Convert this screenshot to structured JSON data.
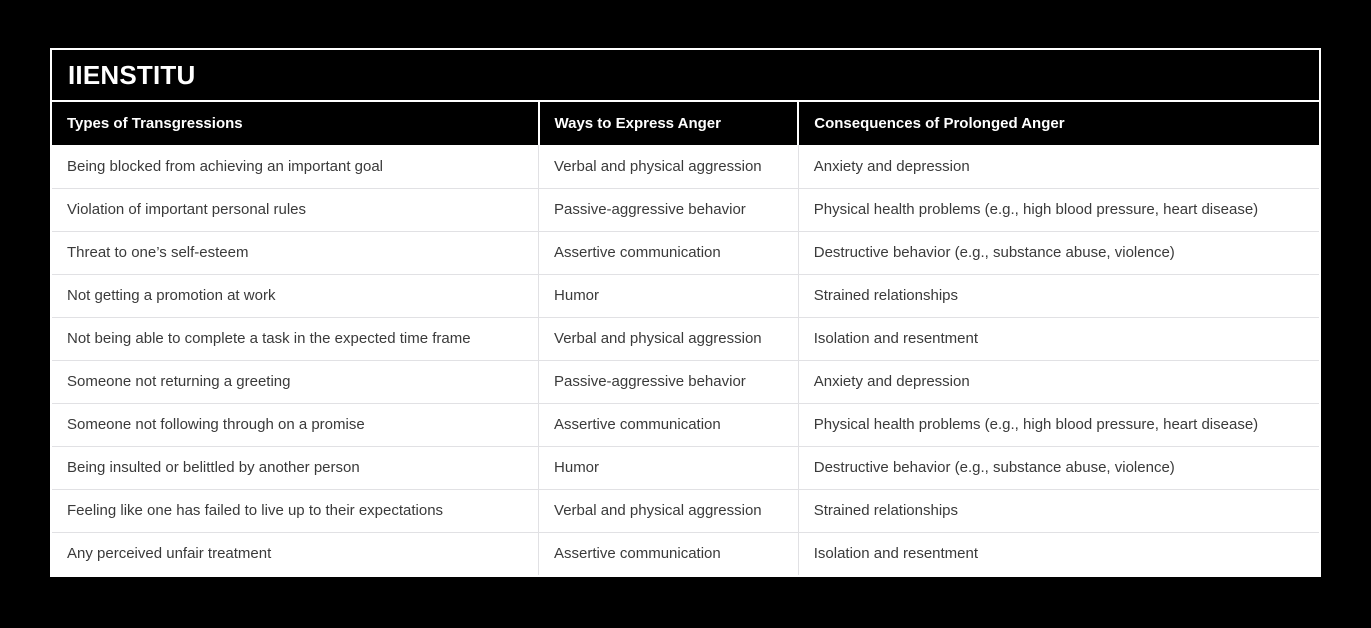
{
  "brand": {
    "title": "IIENSTITU"
  },
  "colors": {
    "page_background": "#000000",
    "card_border": "#ffffff",
    "header_background": "#000000",
    "header_text": "#ffffff",
    "body_background": "#ffffff",
    "body_text": "#3a3a3a",
    "divider": "#e1e1e4"
  },
  "table": {
    "headers": [
      "Types of Transgressions",
      "Ways to Express Anger",
      "Consequences of Prolonged Anger"
    ],
    "rows": [
      [
        "Being blocked from achieving an important goal",
        "Verbal and physical aggression",
        "Anxiety and depression"
      ],
      [
        "Violation of important personal rules",
        "Passive-aggressive behavior",
        "Physical health problems (e.g., high blood pressure, heart disease)"
      ],
      [
        "Threat to one’s self-esteem",
        "Assertive communication",
        "Destructive behavior (e.g., substance abuse, violence)"
      ],
      [
        "Not getting a promotion at work",
        "Humor",
        "Strained relationships"
      ],
      [
        "Not being able to complete a task in the expected time frame",
        "Verbal and physical aggression",
        "Isolation and resentment"
      ],
      [
        "Someone not returning a greeting",
        "Passive-aggressive behavior",
        "Anxiety and depression"
      ],
      [
        "Someone not following through on a promise",
        "Assertive communication",
        "Physical health problems (e.g., high blood pressure, heart disease)"
      ],
      [
        "Being insulted or belittled by another person",
        "Humor",
        "Destructive behavior (e.g., substance abuse, violence)"
      ],
      [
        "Feeling like one has failed to live up to their expectations",
        "Verbal and physical aggression",
        "Strained relationships"
      ],
      [
        "Any perceived unfair treatment",
        "Assertive communication",
        "Isolation and resentment"
      ]
    ]
  }
}
